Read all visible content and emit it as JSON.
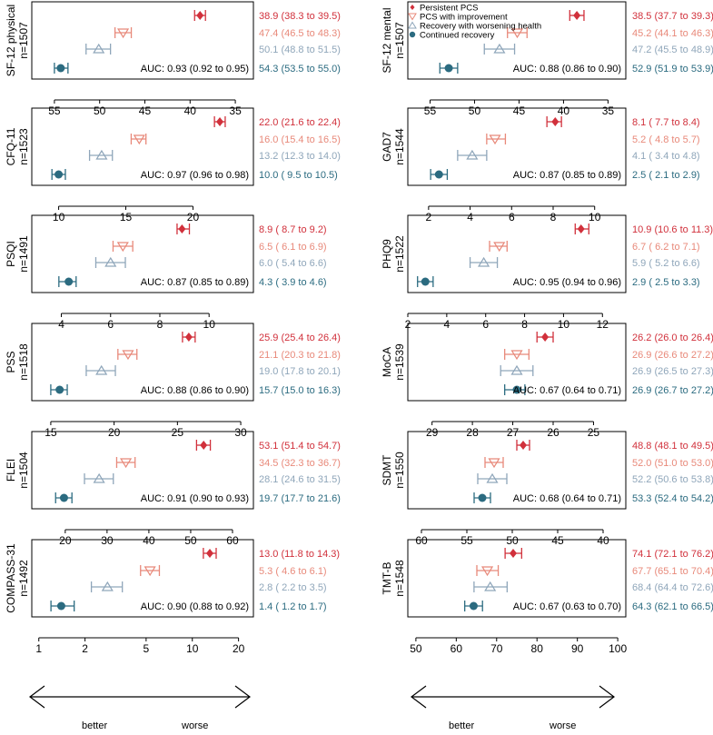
{
  "figure": {
    "series_names": [
      "Persistent PCS",
      "PCS with improvement",
      "Recovery with worsening health",
      "Continued recovery"
    ],
    "series_colors": [
      "#d1303b",
      "#e8897a",
      "#8fa6ba",
      "#2b6b80"
    ],
    "arrow_better": "better",
    "arrow_worse": "worse"
  },
  "chart_data": [
    {
      "type": "forest",
      "id": "sf12-physical",
      "label": "SF-12 physical",
      "n": "n=1507",
      "xlim": [
        57.5,
        33
      ],
      "ticks": [
        55,
        50,
        45,
        40,
        35
      ],
      "scale": "linear",
      "series": [
        {
          "name": "Persistent PCS",
          "est": 38.9,
          "lo": 38.3,
          "hi": 39.5,
          "text": "38.9 (38.3 to 39.5)"
        },
        {
          "name": "PCS with improvement",
          "est": 47.4,
          "lo": 46.5,
          "hi": 48.3,
          "text": "47.4 (46.5 to 48.3)"
        },
        {
          "name": "Recovery with worsening health",
          "est": 50.1,
          "lo": 48.8,
          "hi": 51.5,
          "text": "50.1 (48.8 to 51.5)"
        },
        {
          "name": "Continued recovery",
          "est": 54.3,
          "lo": 53.5,
          "hi": 55.0,
          "text": "54.3 (53.5 to 55.0)"
        }
      ],
      "auc": "AUC: 0.93 (0.92 to 0.95)"
    },
    {
      "type": "forest",
      "id": "sf12-mental",
      "label": "SF-12 mental",
      "n": "n=1507",
      "xlim": [
        57.5,
        33
      ],
      "ticks": [
        55,
        50,
        45,
        40,
        35
      ],
      "scale": "linear",
      "series": [
        {
          "name": "Persistent PCS",
          "est": 38.5,
          "lo": 37.7,
          "hi": 39.3,
          "text": "38.5 (37.7 to 39.3)"
        },
        {
          "name": "PCS with improvement",
          "est": 45.2,
          "lo": 44.1,
          "hi": 46.3,
          "text": "45.2 (44.1 to 46.3)"
        },
        {
          "name": "Recovery with worsening health",
          "est": 47.2,
          "lo": 45.5,
          "hi": 48.9,
          "text": "47.2 (45.5 to 48.9)"
        },
        {
          "name": "Continued recovery",
          "est": 52.9,
          "lo": 51.9,
          "hi": 53.9,
          "text": "52.9 (51.9 to 53.9)"
        }
      ],
      "auc": "AUC: 0.88 (0.86 to 0.90)"
    },
    {
      "type": "forest",
      "id": "cfq11",
      "label": "CFQ-11",
      "n": "n=1523",
      "xlim": [
        8,
        24.5
      ],
      "ticks": [
        10,
        15,
        20
      ],
      "scale": "linear",
      "series": [
        {
          "name": "Persistent PCS",
          "est": 22.0,
          "lo": 21.6,
          "hi": 22.4,
          "text": "22.0 (21.6 to 22.4)"
        },
        {
          "name": "PCS with improvement",
          "est": 16.0,
          "lo": 15.4,
          "hi": 16.5,
          "text": "16.0 (15.4 to 16.5)"
        },
        {
          "name": "Recovery with worsening health",
          "est": 13.2,
          "lo": 12.3,
          "hi": 14.0,
          "text": "13.2 (12.3 to 14.0)"
        },
        {
          "name": "Continued recovery",
          "est": 10.0,
          "lo": 9.5,
          "hi": 10.5,
          "text": "10.0 ( 9.5 to 10.5)"
        }
      ],
      "auc": "AUC: 0.97 (0.96 to 0.98)"
    },
    {
      "type": "forest",
      "id": "gad7",
      "label": "GAD7",
      "n": "n=1544",
      "xlim": [
        1,
        11.5
      ],
      "ticks": [
        2,
        4,
        6,
        8,
        10
      ],
      "scale": "linear",
      "series": [
        {
          "name": "Persistent PCS",
          "est": 8.1,
          "lo": 7.7,
          "hi": 8.4,
          "text": "8.1 ( 7.7 to  8.4)"
        },
        {
          "name": "PCS with improvement",
          "est": 5.2,
          "lo": 4.8,
          "hi": 5.7,
          "text": "5.2 ( 4.8 to  5.7)"
        },
        {
          "name": "Recovery with worsening health",
          "est": 4.1,
          "lo": 3.4,
          "hi": 4.8,
          "text": "4.1 ( 3.4 to  4.8)"
        },
        {
          "name": "Continued recovery",
          "est": 2.5,
          "lo": 2.1,
          "hi": 2.9,
          "text": "2.5 ( 2.1 to  2.9)"
        }
      ],
      "auc": "AUC: 0.87 (0.85 to 0.89)"
    },
    {
      "type": "forest",
      "id": "psqi",
      "label": "PSQI",
      "n": "n=1491",
      "xlim": [
        2.8,
        11.8
      ],
      "ticks": [
        4,
        6,
        8,
        10
      ],
      "scale": "linear",
      "series": [
        {
          "name": "Persistent PCS",
          "est": 8.9,
          "lo": 8.7,
          "hi": 9.2,
          "text": "8.9 ( 8.7 to  9.2)"
        },
        {
          "name": "PCS with improvement",
          "est": 6.5,
          "lo": 6.1,
          "hi": 6.9,
          "text": "6.5 ( 6.1 to  6.9)"
        },
        {
          "name": "Recovery with worsening health",
          "est": 6.0,
          "lo": 5.4,
          "hi": 6.6,
          "text": "6.0 ( 5.4 to  6.6)"
        },
        {
          "name": "Continued recovery",
          "est": 4.3,
          "lo": 3.9,
          "hi": 4.6,
          "text": "4.3 ( 3.9 to  4.6)"
        }
      ],
      "auc": "AUC: 0.87 (0.85 to 0.89)"
    },
    {
      "type": "forest",
      "id": "phq9",
      "label": "PHQ9",
      "n": "n=1522",
      "xlim": [
        2,
        13.2
      ],
      "ticks": [
        2,
        4,
        6,
        8,
        10,
        12
      ],
      "scale": "linear",
      "series": [
        {
          "name": "Persistent PCS",
          "est": 10.9,
          "lo": 10.6,
          "hi": 11.3,
          "text": "10.9 (10.6 to 11.3)"
        },
        {
          "name": "PCS with improvement",
          "est": 6.7,
          "lo": 6.2,
          "hi": 7.1,
          "text": "6.7 ( 6.2 to  7.1)"
        },
        {
          "name": "Recovery with worsening health",
          "est": 5.9,
          "lo": 5.2,
          "hi": 6.6,
          "text": "5.9 ( 5.2 to  6.6)"
        },
        {
          "name": "Continued recovery",
          "est": 2.9,
          "lo": 2.5,
          "hi": 3.3,
          "text": "2.9 ( 2.5 to  3.3)"
        }
      ],
      "auc": "AUC: 0.95 (0.94 to 0.96)"
    },
    {
      "type": "forest",
      "id": "pss",
      "label": "PSS",
      "n": "n=1518",
      "xlim": [
        13.5,
        31
      ],
      "ticks": [
        15,
        20,
        25,
        30
      ],
      "scale": "linear",
      "series": [
        {
          "name": "Persistent PCS",
          "est": 25.9,
          "lo": 25.4,
          "hi": 26.4,
          "text": "25.9 (25.4 to 26.4)"
        },
        {
          "name": "PCS with improvement",
          "est": 21.1,
          "lo": 20.3,
          "hi": 21.8,
          "text": "21.1 (20.3 to 21.8)"
        },
        {
          "name": "Recovery with worsening health",
          "est": 19.0,
          "lo": 17.8,
          "hi": 20.1,
          "text": "19.0 (17.8 to 20.1)"
        },
        {
          "name": "Continued recovery",
          "est": 15.7,
          "lo": 15.0,
          "hi": 16.3,
          "text": "15.7 (15.0 to 16.3)"
        }
      ],
      "auc": "AUC: 0.88 (0.86 to 0.90)"
    },
    {
      "type": "forest",
      "id": "moca",
      "label": "MoCA",
      "n": "n=1539",
      "xlim": [
        29.6,
        24.2
      ],
      "ticks": [
        29,
        28,
        27,
        26,
        25
      ],
      "scale": "linear",
      "series": [
        {
          "name": "Persistent PCS",
          "est": 26.2,
          "lo": 26.0,
          "hi": 26.4,
          "text": "26.2 (26.0 to 26.4)"
        },
        {
          "name": "PCS with improvement",
          "est": 26.9,
          "lo": 26.6,
          "hi": 27.2,
          "text": "26.9 (26.6 to 27.2)"
        },
        {
          "name": "Recovery with worsening health",
          "est": 26.9,
          "lo": 26.5,
          "hi": 27.3,
          "text": "26.9 (26.5 to 27.3)"
        },
        {
          "name": "Continued recovery",
          "est": 26.9,
          "lo": 26.7,
          "hi": 27.2,
          "text": "26.9 (26.7 to 27.2)"
        }
      ],
      "auc": "AUC: 0.67 (0.64 to 0.71)"
    },
    {
      "type": "forest",
      "id": "flei",
      "label": "FLEI",
      "n": "n=1504",
      "xlim": [
        12,
        65
      ],
      "ticks": [
        20,
        30,
        40,
        50,
        60
      ],
      "scale": "linear",
      "series": [
        {
          "name": "Persistent PCS",
          "est": 53.1,
          "lo": 51.4,
          "hi": 54.7,
          "text": "53.1 (51.4 to 54.7)"
        },
        {
          "name": "PCS with improvement",
          "est": 34.5,
          "lo": 32.3,
          "hi": 36.7,
          "text": "34.5 (32.3 to 36.7)"
        },
        {
          "name": "Recovery with worsening health",
          "est": 28.1,
          "lo": 24.6,
          "hi": 31.5,
          "text": "28.1 (24.6 to 31.5)"
        },
        {
          "name": "Continued recovery",
          "est": 19.7,
          "lo": 17.7,
          "hi": 21.6,
          "text": "19.7 (17.7 to 21.6)"
        }
      ],
      "auc": "AUC: 0.91 (0.90 to 0.93)"
    },
    {
      "type": "forest",
      "id": "sdmt",
      "label": "SDMT",
      "n": "n=1550",
      "xlim": [
        61.5,
        37.5
      ],
      "ticks": [
        60,
        55,
        50,
        45,
        40
      ],
      "scale": "linear",
      "series": [
        {
          "name": "Persistent PCS",
          "est": 48.8,
          "lo": 48.1,
          "hi": 49.5,
          "text": "48.8 (48.1 to 49.5)"
        },
        {
          "name": "PCS with improvement",
          "est": 52.0,
          "lo": 51.0,
          "hi": 53.0,
          "text": "52.0 (51.0 to 53.0)"
        },
        {
          "name": "Recovery with worsening health",
          "est": 52.2,
          "lo": 50.6,
          "hi": 53.8,
          "text": "52.2 (50.6 to 53.8)"
        },
        {
          "name": "Continued recovery",
          "est": 53.3,
          "lo": 52.4,
          "hi": 54.2,
          "text": "53.3 (52.4 to 54.2)"
        }
      ],
      "auc": "AUC: 0.68 (0.64 to 0.71)"
    },
    {
      "type": "forest",
      "id": "compass31",
      "label": "COMPASS-31",
      "n": "n=1492",
      "xlim": [
        0.9,
        25
      ],
      "ticks": [
        1,
        2,
        5,
        10,
        20
      ],
      "scale": "log",
      "series": [
        {
          "name": "Persistent PCS",
          "est": 13.0,
          "lo": 11.8,
          "hi": 14.3,
          "text": "13.0 (11.8 to 14.3)"
        },
        {
          "name": "PCS with improvement",
          "est": 5.3,
          "lo": 4.6,
          "hi": 6.1,
          "text": "5.3 ( 4.6 to  6.1)"
        },
        {
          "name": "Recovery with worsening health",
          "est": 2.8,
          "lo": 2.2,
          "hi": 3.5,
          "text": "2.8 ( 2.2 to  3.5)"
        },
        {
          "name": "Continued recovery",
          "est": 1.4,
          "lo": 1.2,
          "hi": 1.7,
          "text": "1.4 ( 1.2 to  1.7)"
        }
      ],
      "auc": "AUC: 0.90 (0.88 to 0.92)"
    },
    {
      "type": "forest",
      "id": "tmtb",
      "label": "TMT-B",
      "n": "n=1548",
      "xlim": [
        48,
        102
      ],
      "ticks": [
        50,
        60,
        70,
        80,
        90,
        100
      ],
      "scale": "linear",
      "series": [
        {
          "name": "Persistent PCS",
          "est": 74.1,
          "lo": 72.1,
          "hi": 76.2,
          "text": "74.1 (72.1 to 76.2)"
        },
        {
          "name": "PCS with improvement",
          "est": 67.7,
          "lo": 65.1,
          "hi": 70.4,
          "text": "67.7 (65.1 to 70.4)"
        },
        {
          "name": "Recovery with worsening health",
          "est": 68.4,
          "lo": 64.4,
          "hi": 72.6,
          "text": "68.4 (64.4 to 72.6)"
        },
        {
          "name": "Continued recovery",
          "est": 64.3,
          "lo": 62.1,
          "hi": 66.5,
          "text": "64.3 (62.1 to 66.5)"
        }
      ],
      "auc": "AUC: 0.67 (0.63 to 0.70)"
    }
  ]
}
